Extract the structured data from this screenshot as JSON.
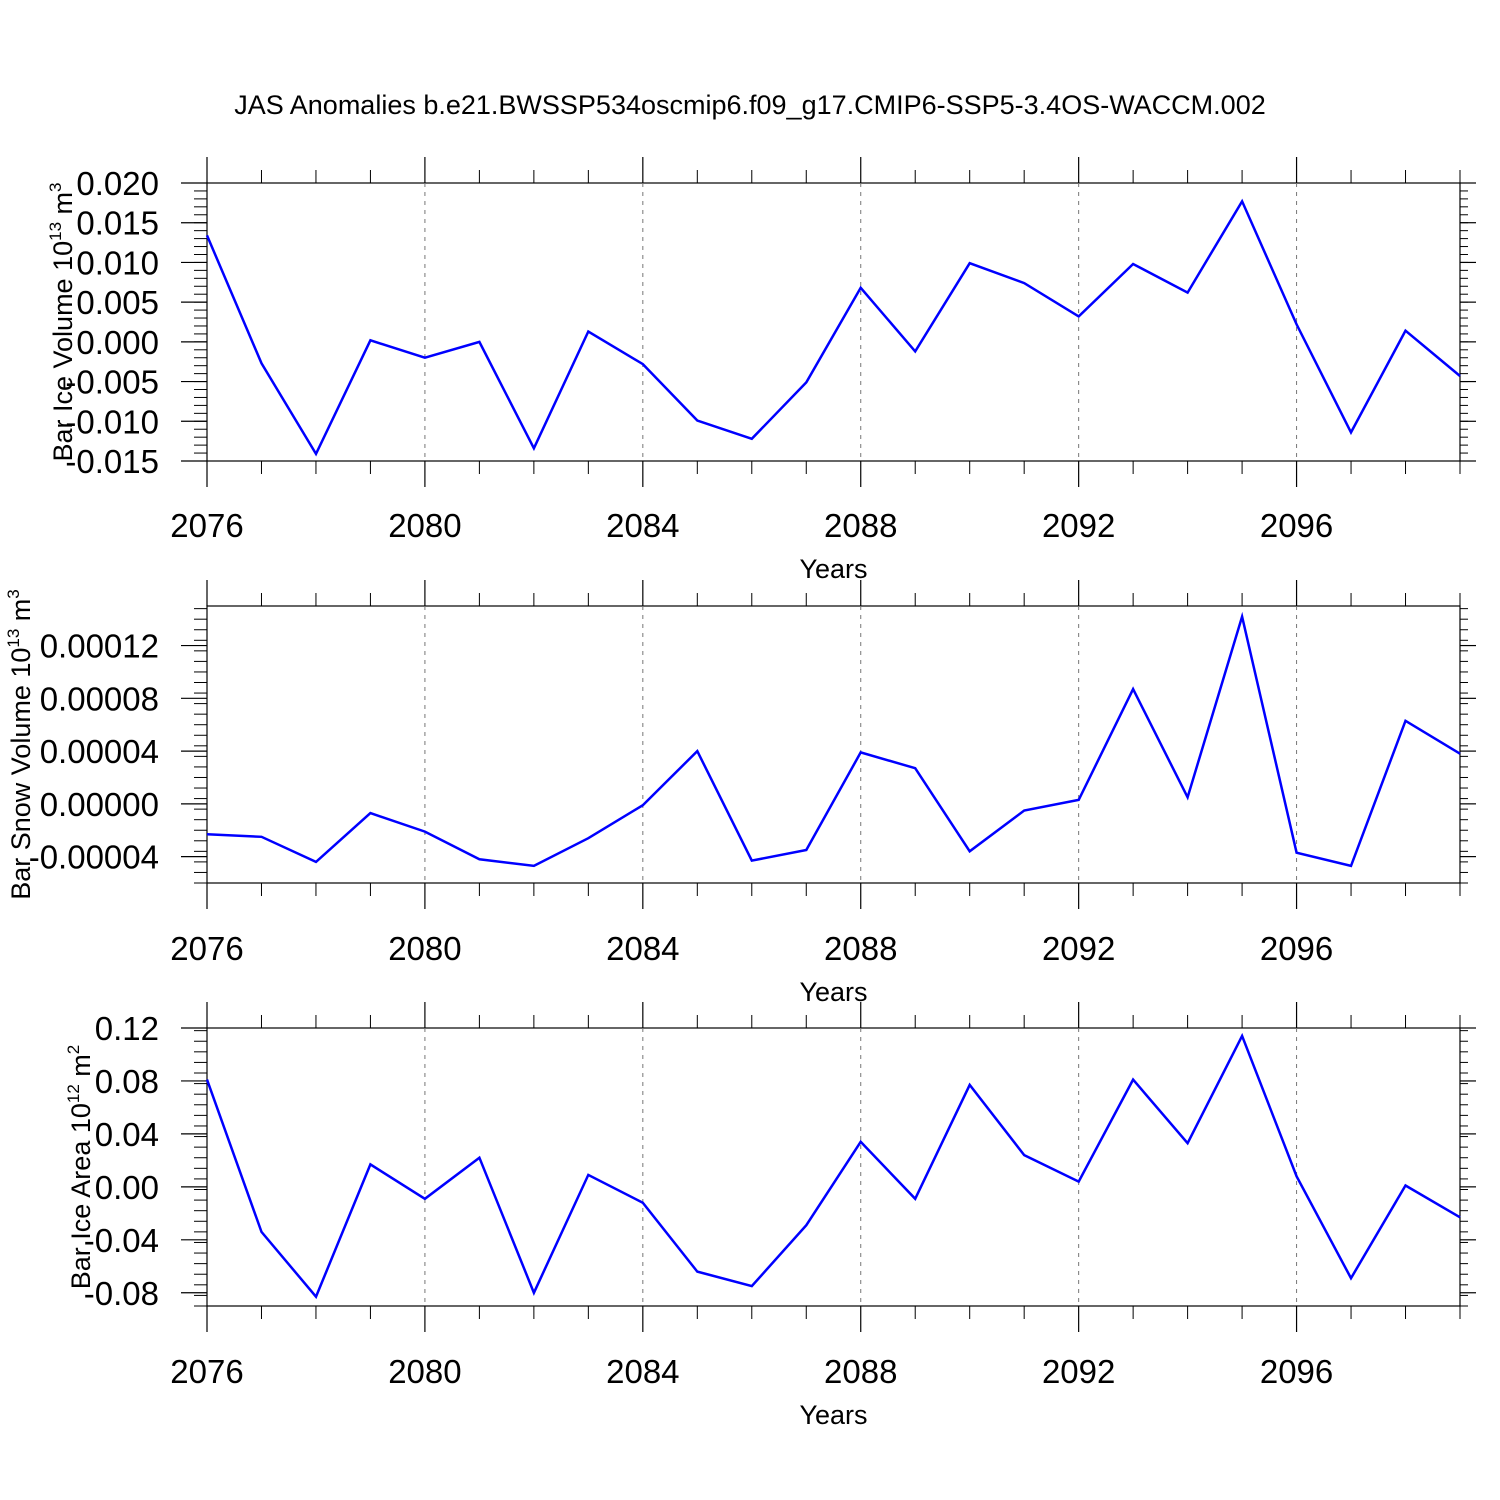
{
  "title": "JAS Anomalies b.e21.BWSSP534oscmip6.f09_g17.CMIP6-SSP5-3.4OS-WACCM.002",
  "colors": {
    "series": "#0000ff",
    "axes": "#000000",
    "grid": "#777777"
  },
  "chart_data": [
    {
      "type": "line",
      "ylabel": "Bar Ice Volume 10",
      "ylabel_sup": "13",
      "ylabel_unit": " m",
      "ylabel_unit_sup": "3",
      "xlabel": "Years",
      "xlim": [
        2076,
        2099
      ],
      "ylim": [
        -0.015,
        0.02
      ],
      "yticks": [
        "0.020",
        "0.015",
        "0.010",
        "0.005",
        "0.000",
        "-0.005",
        "-0.010",
        "-0.015"
      ],
      "ytick_values": [
        0.02,
        0.015,
        0.01,
        0.005,
        0.0,
        -0.005,
        -0.01,
        -0.015
      ],
      "xticks": [
        "2076",
        "2080",
        "2084",
        "2088",
        "2092",
        "2096"
      ],
      "grid": "vertical dashed at major x ticks",
      "x": [
        2076,
        2077,
        2078,
        2079,
        2080,
        2081,
        2082,
        2083,
        2084,
        2085,
        2086,
        2087,
        2088,
        2089,
        2090,
        2091,
        2092,
        2093,
        2094,
        2095,
        2096,
        2097,
        2098,
        2099
      ],
      "values": [
        0.0134,
        -0.0027,
        -0.0141,
        0.0002,
        -0.002,
        0.0,
        -0.0134,
        0.0013,
        -0.0028,
        -0.0099,
        -0.0122,
        -0.0051,
        0.0068,
        -0.0012,
        0.0099,
        0.0074,
        0.0032,
        0.0098,
        0.0062,
        0.0177,
        0.0022,
        -0.0114,
        0.0014,
        -0.0043
      ]
    },
    {
      "type": "line",
      "ylabel": "Bar Snow Volume 10",
      "ylabel_sup": "13",
      "ylabel_unit": " m",
      "ylabel_unit_sup": "3",
      "xlabel": "Years",
      "xlim": [
        2076,
        2099
      ],
      "ylim": [
        -6e-05,
        0.00015
      ],
      "yticks": [
        "0.00012",
        "0.00008",
        "0.00004",
        "0.00000",
        "-0.00004"
      ],
      "ytick_values": [
        0.00012,
        8e-05,
        4e-05,
        0.0,
        -4e-05
      ],
      "xticks": [
        "2076",
        "2080",
        "2084",
        "2088",
        "2092",
        "2096"
      ],
      "grid": "vertical dashed at major x ticks",
      "x": [
        2076,
        2077,
        2078,
        2079,
        2080,
        2081,
        2082,
        2083,
        2084,
        2085,
        2086,
        2087,
        2088,
        2089,
        2090,
        2091,
        2092,
        2093,
        2094,
        2095,
        2096,
        2097,
        2098,
        2099
      ],
      "values": [
        -2.3e-05,
        -2.5e-05,
        -4.4e-05,
        -7e-06,
        -2.1e-05,
        -4.2e-05,
        -4.7e-05,
        -2.6e-05,
        -1e-06,
        4e-05,
        -4.3e-05,
        -3.5e-05,
        3.9e-05,
        2.7e-05,
        -3.6e-05,
        -5e-06,
        3e-06,
        8.7e-05,
        5e-06,
        0.000142,
        -3.7e-05,
        -4.7e-05,
        6.3e-05,
        3.8e-05
      ]
    },
    {
      "type": "line",
      "ylabel": "Bar Ice Area 10",
      "ylabel_sup": "12",
      "ylabel_unit": " m",
      "ylabel_unit_sup": "2",
      "xlabel": "Years",
      "xlim": [
        2076,
        2099
      ],
      "ylim": [
        -0.09,
        0.12
      ],
      "yticks": [
        "0.12",
        "0.08",
        "0.04",
        "0.00",
        "-0.04",
        "-0.08"
      ],
      "ytick_values": [
        0.12,
        0.08,
        0.04,
        0.0,
        -0.04,
        -0.08
      ],
      "xticks": [
        "2076",
        "2080",
        "2084",
        "2088",
        "2092",
        "2096"
      ],
      "grid": "vertical dashed at major x ticks",
      "x": [
        2076,
        2077,
        2078,
        2079,
        2080,
        2081,
        2082,
        2083,
        2084,
        2085,
        2086,
        2087,
        2088,
        2089,
        2090,
        2091,
        2092,
        2093,
        2094,
        2095,
        2096,
        2097,
        2098,
        2099
      ],
      "values": [
        0.081,
        -0.034,
        -0.083,
        0.017,
        -0.009,
        0.022,
        -0.08,
        0.009,
        -0.012,
        -0.064,
        -0.075,
        -0.029,
        0.034,
        -0.009,
        0.077,
        0.024,
        0.004,
        0.081,
        0.033,
        0.114,
        0.008,
        -0.069,
        0.001,
        -0.023
      ]
    }
  ]
}
